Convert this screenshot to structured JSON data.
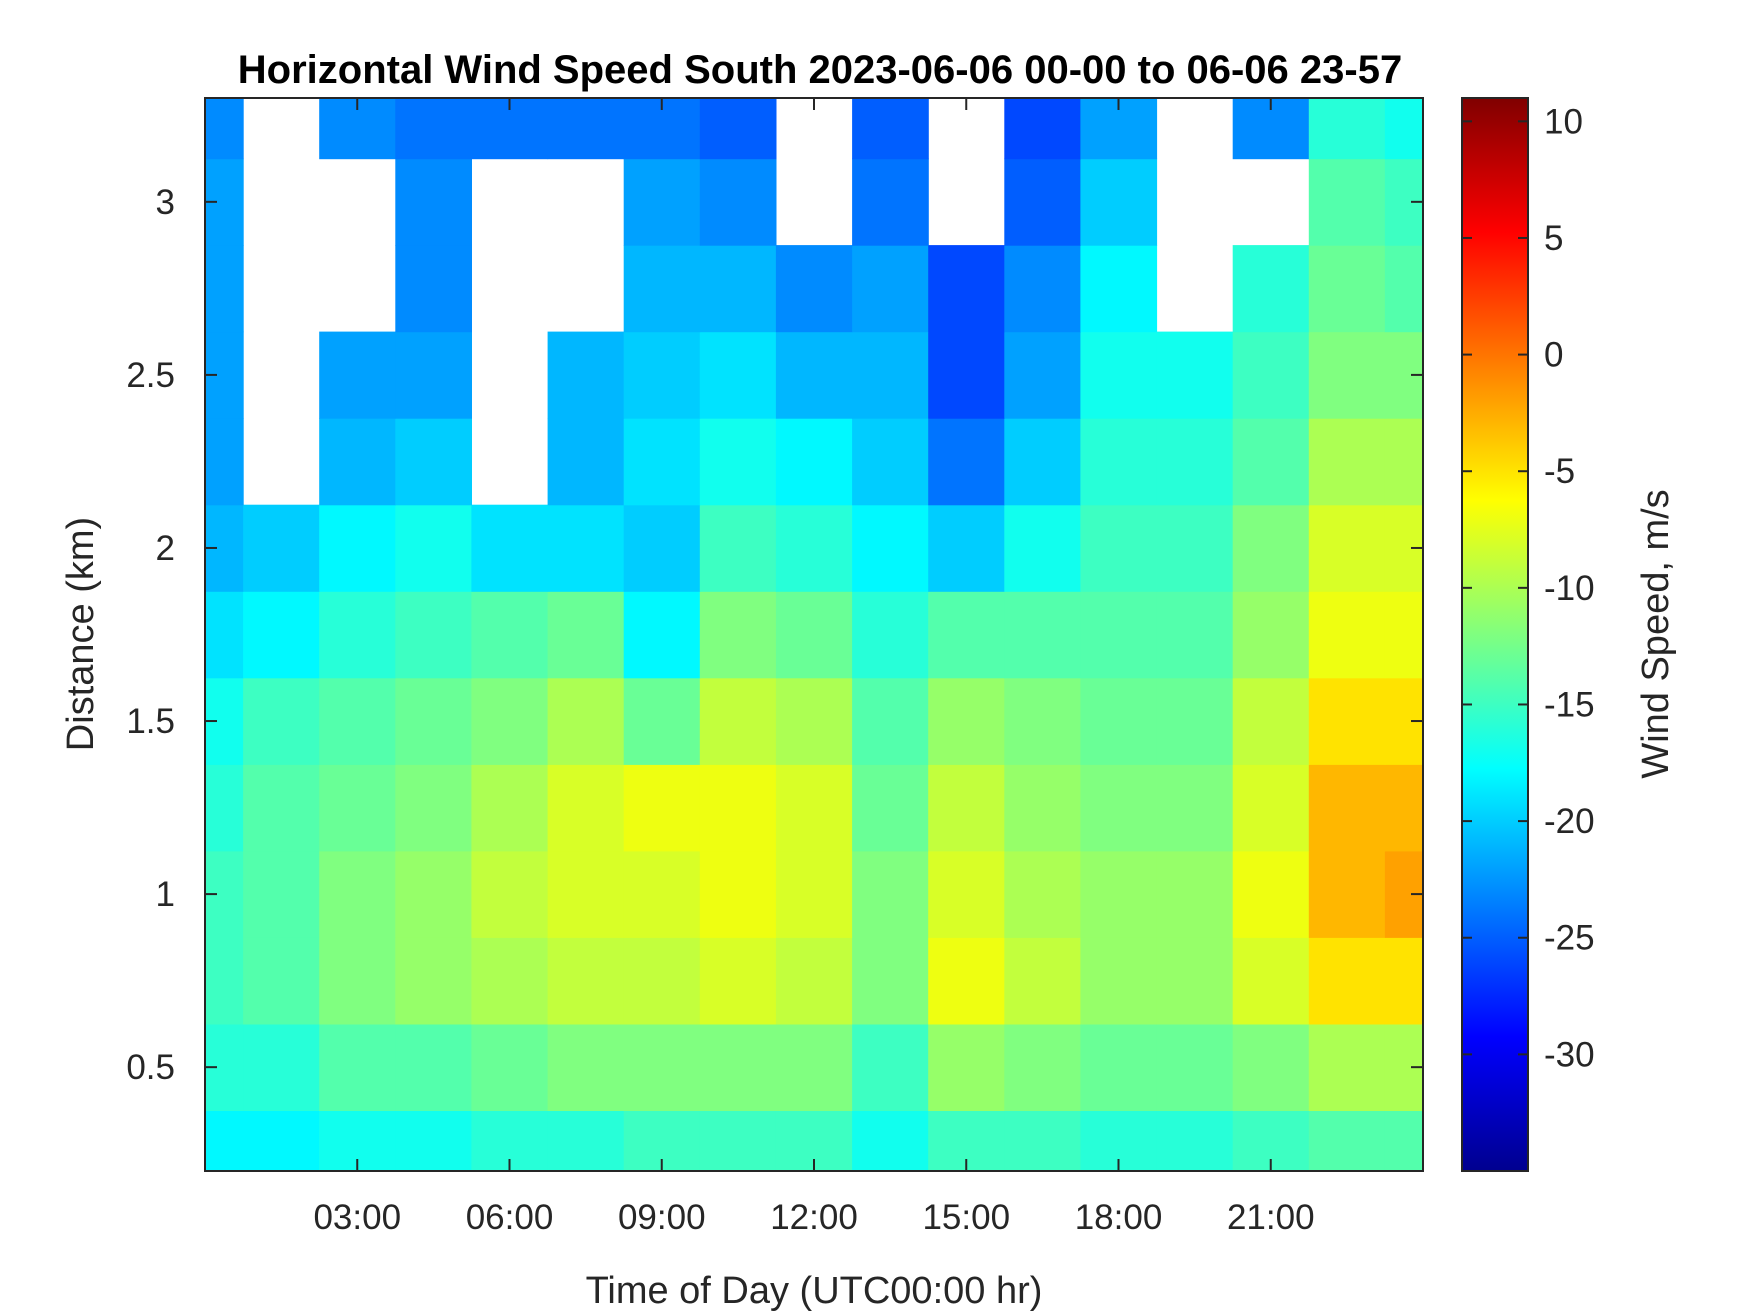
{
  "chart_data": {
    "type": "heatmap",
    "title": "Horizontal Wind Speed South 2023-06-06 00-00 to 06-06 23-57",
    "xlabel": "Time of Day (UTC00:00 hr)",
    "ylabel": "Distance (km)",
    "colorbar_label": "Wind Speed, m/s",
    "x_unit": "hours UTC",
    "xlim": [
      0,
      24
    ],
    "ylim": [
      0.2,
      3.3
    ],
    "clim": [
      -35,
      11
    ],
    "colormap": "jet",
    "xticks": [
      {
        "value": 3,
        "label": "03:00"
      },
      {
        "value": 6,
        "label": "06:00"
      },
      {
        "value": 9,
        "label": "09:00"
      },
      {
        "value": 12,
        "label": "12:00"
      },
      {
        "value": 15,
        "label": "15:00"
      },
      {
        "value": 18,
        "label": "18:00"
      },
      {
        "value": 21,
        "label": "21:00"
      }
    ],
    "yticks": [
      {
        "value": 0.5,
        "label": "0.5"
      },
      {
        "value": 1,
        "label": "1"
      },
      {
        "value": 1.5,
        "label": "1.5"
      },
      {
        "value": 2,
        "label": "2"
      },
      {
        "value": 2.5,
        "label": "2.5"
      },
      {
        "value": 3,
        "label": "3"
      }
    ],
    "cticks": [
      {
        "value": 10,
        "label": "10"
      },
      {
        "value": 5,
        "label": "5"
      },
      {
        "value": 0,
        "label": "0"
      },
      {
        "value": -5,
        "label": "-5"
      },
      {
        "value": -10,
        "label": "-10"
      },
      {
        "value": -15,
        "label": "-15"
      },
      {
        "value": -20,
        "label": "-20"
      },
      {
        "value": -25,
        "label": "-25"
      },
      {
        "value": -30,
        "label": "-30"
      }
    ],
    "height_km": [
      0.25,
      0.5,
      0.75,
      1.0,
      1.25,
      1.5,
      1.75,
      2.0,
      2.25,
      2.5,
      2.75,
      3.0,
      3.25
    ],
    "time_hr": [
      0,
      1.5,
      3,
      4.5,
      6,
      7.5,
      9,
      10.5,
      12,
      13.5,
      15,
      16.5,
      18,
      19.5,
      21,
      22.5,
      24
    ],
    "wind_speed_ms": [
      [
        -18,
        -18,
        -17,
        -17,
        -16,
        -16,
        -15,
        -15,
        -15,
        -17,
        -15,
        -15,
        -16,
        -16,
        -15,
        -14,
        -14
      ],
      [
        -16,
        -16,
        -14,
        -14,
        -13,
        -12,
        -12,
        -12,
        -12,
        -15,
        -11,
        -12,
        -13,
        -13,
        -12,
        -10,
        -10
      ],
      [
        -15,
        -14,
        -12,
        -11,
        -10,
        -9,
        -9,
        -8,
        -9,
        -12,
        -7,
        -9,
        -11,
        -11,
        -8,
        -5,
        -5
      ],
      [
        -15,
        -14,
        -12,
        -11,
        -9,
        -8,
        -8,
        -7,
        -8,
        -12,
        -8,
        -10,
        -11,
        -11,
        -7,
        -3,
        -2
      ],
      [
        -16,
        -14,
        -13,
        -12,
        -10,
        -8,
        -7,
        -7,
        -8,
        -13,
        -9,
        -11,
        -12,
        -12,
        -8,
        -3,
        -3
      ],
      [
        -17,
        -15,
        -14,
        -13,
        -12,
        -10,
        -13,
        -9,
        -10,
        -14,
        -11,
        -12,
        -13,
        -13,
        -9,
        -5,
        -5
      ],
      [
        -19,
        -18,
        -16,
        -15,
        -14,
        -13,
        -18,
        -12,
        -13,
        -16,
        -14,
        -14,
        -14,
        -14,
        -11,
        -7,
        -7
      ],
      [
        -21,
        -20,
        -18,
        -17,
        -19,
        -19,
        -20,
        -15,
        -16,
        -18,
        -20,
        -17,
        -15,
        -15,
        -12,
        -8,
        -8
      ],
      [
        -22,
        null,
        -21,
        -20,
        null,
        -21,
        -19,
        -17,
        -18,
        -20,
        -24,
        -20,
        -16,
        -16,
        -14,
        -10,
        -10
      ],
      [
        -22,
        null,
        -22,
        -22,
        null,
        -21,
        -20,
        -19,
        -21,
        -21,
        -26,
        -22,
        -17,
        -17,
        -15,
        -12,
        -12
      ],
      [
        -22,
        null,
        null,
        -23,
        null,
        null,
        -21,
        -21,
        -23,
        -22,
        -26,
        -23,
        -18,
        null,
        -16,
        -13,
        -14
      ],
      [
        -22,
        null,
        null,
        -23,
        null,
        null,
        -22,
        -23,
        null,
        -24,
        null,
        -25,
        -20,
        null,
        null,
        -14,
        -15
      ],
      [
        -23,
        null,
        -23,
        -24,
        -24,
        -24,
        -24,
        -25,
        null,
        -25,
        null,
        -26,
        -22,
        null,
        -23,
        -16,
        -17
      ]
    ]
  }
}
